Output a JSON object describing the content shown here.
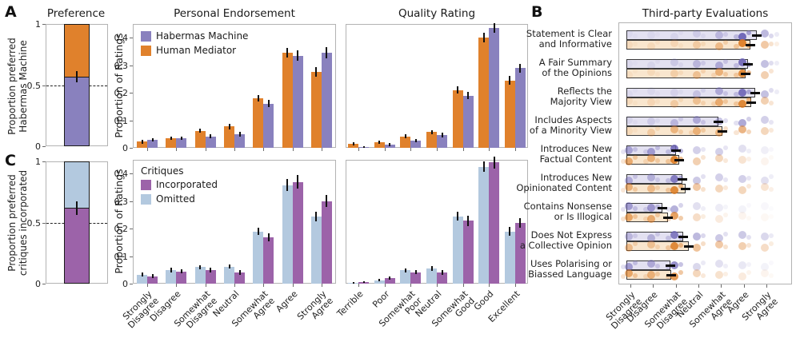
{
  "figure": {
    "panel_a_label": "A",
    "panel_b_label": "B",
    "panel_c_label": "C",
    "titles": {
      "preference": "Preference",
      "endorsement": "Personal Endorsement",
      "quality": "Quality Rating",
      "third_party": "Third-party Evaluations"
    },
    "ylabels": {
      "a": "Proportion preferred\nHabermas Machine",
      "c": "Proportion preferred\ncritiques incorporated",
      "ratings_top": "Proportion of Ratings",
      "ratings_bottom": "Proportion of Ratings"
    },
    "legend_top": {
      "items": [
        {
          "label": "Habermas Machine",
          "color": "#8981BE"
        },
        {
          "label": "Human Mediator",
          "color": "#E0812C"
        }
      ]
    },
    "legend_bottom": {
      "title": "Critiques",
      "items": [
        {
          "label": "Incorporated",
          "color": "#9C63A9"
        },
        {
          "label": "Omitted",
          "color": "#B3C9DF"
        }
      ]
    }
  },
  "colors": {
    "habermas_purple": "#8981BE",
    "mediator_orange": "#E0812C",
    "incorporated_magenta": "#9C63A9",
    "omitted_blue": "#B3C9DF",
    "bar_fill_purple_light": "#E3E1F1",
    "bar_fill_orange_light": "#F9E6CE",
    "dot_purple": "#6C63B5",
    "dot_orange": "#DB7920"
  },
  "chart_data": [
    {
      "id": "preference",
      "type": "stacked-bar",
      "title": "Preference",
      "ylabel": "Proportion preferred Habermas Machine",
      "ylim": [
        0,
        1
      ],
      "yticks": [
        {
          "v": 0,
          "label": "0"
        },
        {
          "v": 0.5,
          "label": "0.5"
        },
        {
          "v": 1,
          "label": "1"
        }
      ],
      "dashed_line_at": 0.5,
      "bottom_segment": {
        "name": "Habermas Machine",
        "color": "#8981BE",
        "value": 0.57
      },
      "top_segment": {
        "name": "Human Mediator",
        "color": "#E0812C",
        "value": 0.43
      },
      "error": 0.045
    },
    {
      "id": "critiques_preference",
      "type": "stacked-bar",
      "ylabel": "Proportion preferred critiques incorporated",
      "ylim": [
        0,
        1
      ],
      "yticks": [
        {
          "v": 0,
          "label": "0"
        },
        {
          "v": 0.5,
          "label": "0.5"
        },
        {
          "v": 1,
          "label": "1"
        }
      ],
      "dashed_line_at": 0.5,
      "bottom_segment": {
        "name": "Incorporated",
        "color": "#9C63A9",
        "value": 0.62
      },
      "top_segment": {
        "name": "Omitted",
        "color": "#B3C9DF",
        "value": 0.38
      },
      "error": 0.055
    },
    {
      "id": "endorsement_top",
      "type": "bar",
      "title": "Personal Endorsement",
      "ylabel": "Proportion of Ratings",
      "ylim": [
        0,
        0.45
      ],
      "yticks": [
        {
          "v": 0,
          "label": "0"
        },
        {
          "v": 0.1,
          "label": "0.1"
        },
        {
          "v": 0.2,
          "label": "0.2"
        },
        {
          "v": 0.3,
          "label": "0.3"
        },
        {
          "v": 0.4,
          "label": "0.4"
        }
      ],
      "categories": [
        "Strongly\nDisagree",
        "Disagree",
        "Somewhat\nDisagree",
        "Neutral",
        "Somewhat\nAgree",
        "Agree",
        "Strongly\nAgree"
      ],
      "series": [
        {
          "name": "Human Mediator",
          "color": "#E0812C",
          "values": [
            0.022,
            0.035,
            0.062,
            0.078,
            0.18,
            0.345,
            0.275
          ],
          "err": [
            0.008,
            0.007,
            0.008,
            0.01,
            0.012,
            0.018,
            0.018
          ]
        },
        {
          "name": "Habermas Machine",
          "color": "#8981BE",
          "values": [
            0.028,
            0.035,
            0.042,
            0.05,
            0.16,
            0.335,
            0.345
          ],
          "err": [
            0.006,
            0.006,
            0.007,
            0.008,
            0.013,
            0.018,
            0.02
          ]
        }
      ]
    },
    {
      "id": "quality_top",
      "type": "bar",
      "title": "Quality Rating",
      "ylim": [
        0,
        0.45
      ],
      "categories": [
        "Terrible",
        "Poor",
        "Somewhat\nPoor",
        "Neutral",
        "Somewhat\nGood",
        "Good",
        "Excellent"
      ],
      "series": [
        {
          "name": "Human Mediator",
          "color": "#E0812C",
          "values": [
            0.015,
            0.02,
            0.042,
            0.057,
            0.21,
            0.4,
            0.245
          ],
          "err": [
            0.005,
            0.006,
            0.008,
            0.008,
            0.013,
            0.018,
            0.015
          ]
        },
        {
          "name": "Habermas Machine",
          "color": "#8981BE",
          "values": [
            0.004,
            0.012,
            0.027,
            0.047,
            0.19,
            0.435,
            0.29
          ],
          "err": [
            0.003,
            0.005,
            0.006,
            0.008,
            0.013,
            0.018,
            0.016
          ]
        }
      ]
    },
    {
      "id": "endorsement_bottom",
      "type": "bar",
      "ylabel": "Proportion of Ratings",
      "ylim": [
        0,
        0.45
      ],
      "yticks": [
        {
          "v": 0,
          "label": "0"
        },
        {
          "v": 0.1,
          "label": "0.1"
        },
        {
          "v": 0.2,
          "label": "0.2"
        },
        {
          "v": 0.3,
          "label": "0.3"
        },
        {
          "v": 0.4,
          "label": "0.4"
        }
      ],
      "categories": [
        "Strongly\nDisagree",
        "Disagree",
        "Somewhat\nDisagree",
        "Neutral",
        "Somewhat\nAgree",
        "Agree",
        "Strongly\nAgree"
      ],
      "series": [
        {
          "name": "Omitted",
          "color": "#B3C9DF",
          "values": [
            0.033,
            0.05,
            0.06,
            0.062,
            0.19,
            0.358,
            0.243
          ],
          "err": [
            0.007,
            0.008,
            0.008,
            0.008,
            0.013,
            0.022,
            0.018
          ]
        },
        {
          "name": "Incorporated",
          "color": "#9C63A9",
          "values": [
            0.027,
            0.045,
            0.05,
            0.04,
            0.168,
            0.37,
            0.3
          ],
          "err": [
            0.007,
            0.008,
            0.008,
            0.008,
            0.015,
            0.025,
            0.022
          ]
        }
      ]
    },
    {
      "id": "quality_bottom",
      "type": "bar",
      "ylim": [
        0,
        0.45
      ],
      "categories": [
        "Terrible",
        "Poor",
        "Somewhat\nPoor",
        "Neutral",
        "Somewhat\nGood",
        "Good",
        "Excellent"
      ],
      "series": [
        {
          "name": "Omitted",
          "color": "#B3C9DF",
          "values": [
            0.003,
            0.013,
            0.048,
            0.055,
            0.245,
            0.425,
            0.19
          ],
          "err": [
            0.002,
            0.004,
            0.008,
            0.008,
            0.015,
            0.02,
            0.015
          ]
        },
        {
          "name": "Incorporated",
          "color": "#9C63A9",
          "values": [
            0.005,
            0.02,
            0.042,
            0.04,
            0.228,
            0.44,
            0.22
          ],
          "err": [
            0.003,
            0.005,
            0.008,
            0.008,
            0.018,
            0.022,
            0.018
          ]
        }
      ]
    },
    {
      "id": "third_party",
      "type": "dot-strip",
      "title": "Third-party Evaluations",
      "scale_range": [
        1,
        7
      ],
      "categories": [
        "Strongly\nDisagree",
        "Disagree",
        "Somewhat\nDisagree",
        "Neutral",
        "Somewhat\nAgree",
        "Agree",
        "Strongly\nAgree"
      ],
      "series_names": [
        "Habermas Machine",
        "Human Mediator"
      ],
      "rows": [
        {
          "label": "Statement is Clear\nand Informative",
          "habermas": {
            "mean": 6.58,
            "dots": [
              0.06,
              0.08,
              0.1,
              0.18,
              0.35,
              0.95,
              0.45
            ]
          },
          "human": {
            "mean": 6.3,
            "dots": [
              0.1,
              0.12,
              0.15,
              0.25,
              0.4,
              0.9,
              0.4
            ]
          }
        },
        {
          "label": "A Fair Summary\nof the Opinions",
          "habermas": {
            "mean": 6.19,
            "dots": [
              0.06,
              0.1,
              0.2,
              0.35,
              0.45,
              0.9,
              0.4
            ]
          },
          "human": {
            "mean": 6.09,
            "dots": [
              0.08,
              0.12,
              0.22,
              0.35,
              0.5,
              0.85,
              0.35
            ]
          }
        },
        {
          "label": "Reflects the\nMajority View",
          "habermas": {
            "mean": 6.5,
            "dots": [
              0.06,
              0.08,
              0.12,
              0.25,
              0.45,
              0.9,
              0.4
            ]
          },
          "human": {
            "mean": 6.33,
            "dots": [
              0.1,
              0.15,
              0.25,
              0.35,
              0.55,
              0.85,
              0.35
            ]
          }
        },
        {
          "label": "Includes Aspects\nof a Minority View",
          "habermas": {
            "mean": 4.89,
            "dots": [
              0.1,
              0.18,
              0.35,
              0.45,
              0.4,
              0.55,
              0.3
            ]
          },
          "human": {
            "mean": 5.06,
            "dots": [
              0.12,
              0.25,
              0.45,
              0.5,
              0.45,
              0.55,
              0.3
            ]
          }
        },
        {
          "label": "Introduces New\nFactual Content",
          "habermas": {
            "mean": 3.0,
            "dots": [
              0.5,
              0.55,
              0.85,
              0.3,
              0.3,
              0.2,
              0.1
            ]
          },
          "human": {
            "mean": 3.16,
            "dots": [
              0.55,
              0.5,
              0.9,
              0.35,
              0.3,
              0.2,
              0.08
            ]
          }
        },
        {
          "label": "Introduces New\nOpinionated Content",
          "habermas": {
            "mean": 3.3,
            "dots": [
              0.45,
              0.4,
              0.8,
              0.35,
              0.3,
              0.3,
              0.2
            ]
          },
          "human": {
            "mean": 3.44,
            "dots": [
              0.5,
              0.4,
              0.85,
              0.4,
              0.3,
              0.3,
              0.2
            ]
          }
        },
        {
          "label": "Contains Nonsense\nor Is Illogical",
          "habermas": {
            "mean": 2.41,
            "dots": [
              0.55,
              0.6,
              0.5,
              0.2,
              0.12,
              0.08,
              0.05
            ]
          },
          "human": {
            "mean": 2.66,
            "dots": [
              0.6,
              0.55,
              0.7,
              0.25,
              0.15,
              0.08,
              0.05
            ]
          }
        },
        {
          "label": "Does Not Express\na Collective Opinion",
          "habermas": {
            "mean": 3.33,
            "dots": [
              0.35,
              0.4,
              0.8,
              0.45,
              0.35,
              0.35,
              0.25
            ]
          },
          "human": {
            "mean": 3.58,
            "dots": [
              0.4,
              0.35,
              0.85,
              0.45,
              0.4,
              0.35,
              0.25
            ]
          }
        },
        {
          "label": "Uses Polarising or\nBiassed Language",
          "habermas": {
            "mean": 2.77,
            "dots": [
              0.55,
              0.45,
              0.7,
              0.25,
              0.2,
              0.15,
              0.08
            ]
          },
          "human": {
            "mean": 2.8,
            "dots": [
              0.6,
              0.5,
              0.75,
              0.3,
              0.22,
              0.15,
              0.08
            ]
          }
        }
      ]
    }
  ]
}
